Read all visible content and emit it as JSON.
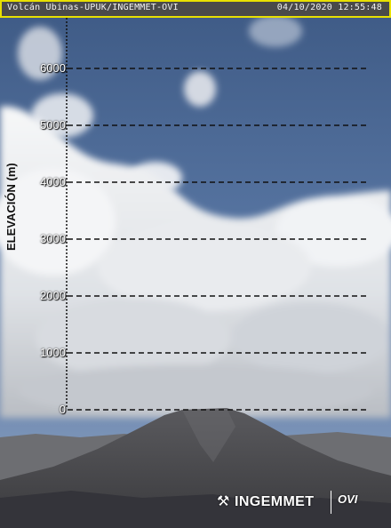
{
  "header": {
    "camera_title": "Volcán Ubinas-UPUK/INGEMMET-OVI",
    "timestamp": "04/10/2020 12:55:48"
  },
  "elevation_scale": {
    "axis_label": "ELEVACIÓN (m)",
    "ticks": [
      "6000",
      "5000",
      "4000",
      "3000",
      "2000",
      "1000",
      "0"
    ]
  },
  "logos": {
    "ingemmet": "INGEMMET",
    "ovi": "OVI"
  },
  "colors": {
    "sky": "#4a6591",
    "cloud": "#eef0f2",
    "volcano": "#4b4b4e",
    "header_border": "#e8e000",
    "scale_line": "#111111"
  }
}
